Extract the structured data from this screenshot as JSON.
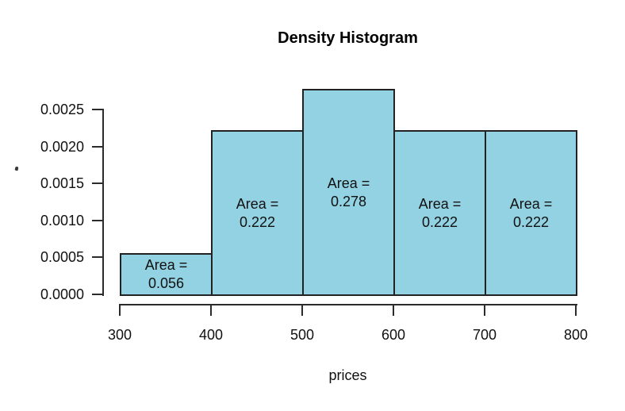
{
  "chart_data": {
    "type": "bar",
    "subtype": "density-histogram",
    "title": "Density Histogram",
    "xlabel": "prices",
    "ylabel": "",
    "x_ticks": [
      "300",
      "400",
      "500",
      "600",
      "700",
      "800"
    ],
    "y_ticks": [
      "0.0000",
      "0.0005",
      "0.0010",
      "0.0015",
      "0.0020",
      "0.0025"
    ],
    "xlim": [
      300,
      800
    ],
    "ylim": [
      0,
      0.0025
    ],
    "grid": false,
    "legend_position": "none",
    "bins": [
      {
        "x0": 300,
        "x1": 400,
        "density": 0.000556,
        "area": 0.056,
        "label_line1": "Area =",
        "label_line2": "0.056"
      },
      {
        "x0": 400,
        "x1": 500,
        "density": 0.002222,
        "area": 0.222,
        "label_line1": "Area =",
        "label_line2": "0.222"
      },
      {
        "x0": 500,
        "x1": 600,
        "density": 0.002778,
        "area": 0.278,
        "label_line1": "Area =",
        "label_line2": "0.278"
      },
      {
        "x0": 600,
        "x1": 700,
        "density": 0.002222,
        "area": 0.222,
        "label_line1": "Area =",
        "label_line2": "0.222"
      },
      {
        "x0": 700,
        "x1": 800,
        "density": 0.002222,
        "area": 0.222,
        "label_line1": "Area =",
        "label_line2": "0.222"
      }
    ],
    "colors": {
      "bar_fill": "#92D2E2",
      "bar_border": "#222222",
      "axis": "#2b2b2b",
      "text": "#111111",
      "background": "#ffffff"
    }
  }
}
